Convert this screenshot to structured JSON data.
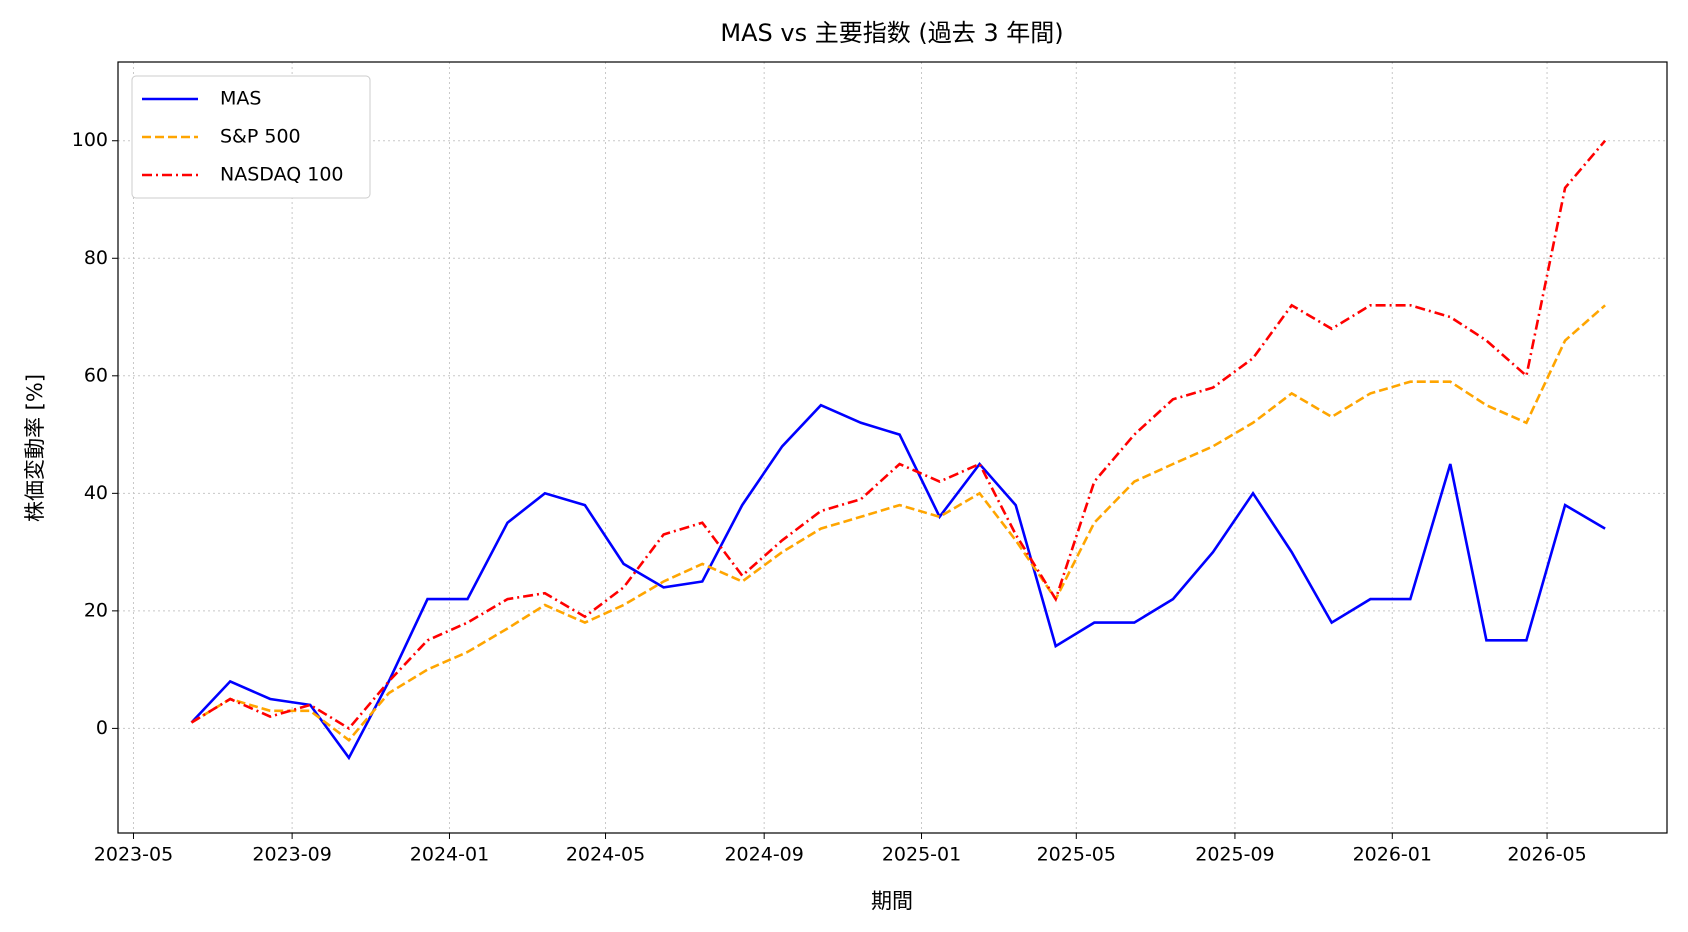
{
  "chart_data": {
    "type": "line",
    "title": "MAS vs 主要指数 (過去 3 年間)",
    "x_label": "期間",
    "y_label": "株価変動率 [%]",
    "x": [
      "2023-06",
      "2023-07",
      "2023-08",
      "2023-09",
      "2023-10",
      "2023-11",
      "2023-12",
      "2024-01",
      "2024-02",
      "2024-03",
      "2024-04",
      "2024-05",
      "2024-06",
      "2024-07",
      "2024-08",
      "2024-09",
      "2024-10",
      "2024-11",
      "2024-12",
      "2025-01",
      "2025-02",
      "2025-03",
      "2025-04",
      "2025-05",
      "2025-06",
      "2025-07",
      "2025-08",
      "2025-09",
      "2025-10",
      "2025-11",
      "2025-12",
      "2026-01",
      "2026-02",
      "2026-03",
      "2026-04",
      "2026-05",
      "2026-06"
    ],
    "series": [
      {
        "name": "MAS",
        "color": "#0000ff",
        "linestyle": "solid",
        "values": [
          1,
          8,
          5,
          4,
          -5,
          8,
          22,
          22,
          35,
          40,
          38,
          28,
          24,
          25,
          38,
          48,
          55,
          52,
          50,
          36,
          45,
          38,
          14,
          18,
          18,
          22,
          30,
          40,
          30,
          18,
          22,
          22,
          45,
          15,
          15,
          38,
          34
        ]
      },
      {
        "name": "S&P 500",
        "color": "#ffa500",
        "linestyle": "dashed",
        "values": [
          1,
          5,
          3,
          3,
          -2,
          6,
          10,
          13,
          17,
          21,
          18,
          21,
          25,
          28,
          25,
          30,
          34,
          36,
          38,
          36,
          40,
          32,
          22,
          35,
          42,
          45,
          48,
          52,
          57,
          53,
          57,
          59,
          59,
          55,
          52,
          66,
          72
        ]
      },
      {
        "name": "NASDAQ 100",
        "color": "#ff0000",
        "linestyle": "dashdot",
        "values": [
          1,
          5,
          2,
          4,
          0,
          8,
          15,
          18,
          22,
          23,
          19,
          24,
          33,
          35,
          26,
          32,
          37,
          39,
          45,
          42,
          45,
          33,
          22,
          42,
          50,
          56,
          58,
          63,
          72,
          68,
          72,
          72,
          70,
          66,
          60,
          92,
          100
        ]
      }
    ],
    "xlim": [
      "2023-04-19",
      "2026-08-02"
    ],
    "xticks": [
      "2023-05",
      "2023-09",
      "2024-01",
      "2024-05",
      "2024-09",
      "2025-01",
      "2025-05",
      "2025-09",
      "2026-01",
      "2026-05"
    ],
    "ylim": [
      -17.8,
      113.4
    ],
    "yticks": [
      0,
      20,
      40,
      60,
      80,
      100
    ],
    "grid": true,
    "legend": "upper left"
  }
}
